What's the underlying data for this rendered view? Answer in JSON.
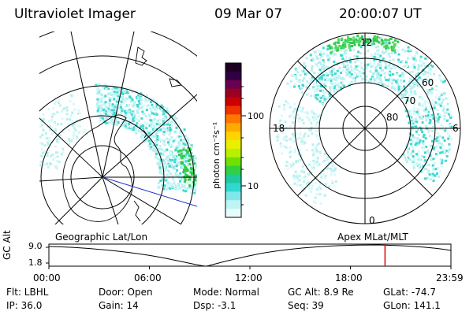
{
  "header": {
    "instrument": "Ultraviolet Imager",
    "date": "09 Mar 07",
    "time": "20:00:07 UT"
  },
  "colorbar": {
    "unit_label": "photon cm⁻²s⁻¹",
    "ticks": [
      "100",
      "10"
    ],
    "colors": [
      "#1a0020",
      "#300040",
      "#6a0050",
      "#9a0020",
      "#cc0000",
      "#ee3300",
      "#ff7700",
      "#ffaa00",
      "#ffd400",
      "#e8f000",
      "#b8f000",
      "#70e000",
      "#30d040",
      "#20c8a0",
      "#30d8d0",
      "#80e8e8",
      "#c0f4f4",
      "#e8fbfb"
    ]
  },
  "left_map": {
    "label": "Geographic Lat/Lon"
  },
  "right_map": {
    "label": "Apex  MLat/MLT",
    "mlt_labels": {
      "top": "12",
      "left": "18",
      "right": "6",
      "bottom": "0"
    },
    "lat_labels": [
      "60",
      "70",
      "80"
    ]
  },
  "altitude_plot": {
    "ylabel": "GC Alt",
    "y_ticks": [
      "9.0",
      "1.8"
    ],
    "x_ticks": [
      "00:00",
      "06:00",
      "12:00",
      "18:00",
      "23:59"
    ],
    "marker_time_fraction": 0.836
  },
  "info": {
    "filter": "Flt: LBHL",
    "ip": "IP: 36.0",
    "door": "Door: Open",
    "gain": "Gain: 14",
    "mode": "Mode: Normal",
    "dsp": "Dsp:    -3.1",
    "gc_alt": "GC Alt: 8.9 Re",
    "seq": "Seq: 39",
    "glat": "GLat: -74.7",
    "glon": "GLon: 141.1"
  },
  "colors": {
    "marker": "#dd0000",
    "aurora_light": "#b8f0f0",
    "aurora_mid": "#40d8d0",
    "aurora_green": "#30c848"
  }
}
